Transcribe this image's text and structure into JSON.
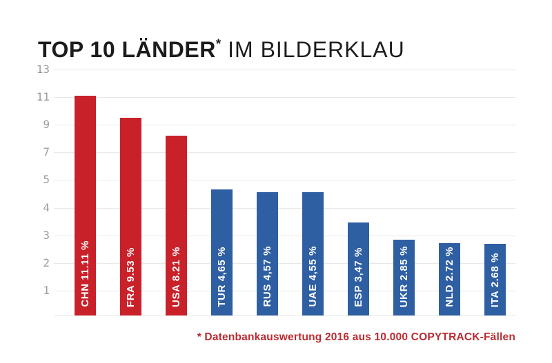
{
  "title": {
    "bold": "TOP 10 LÄNDER",
    "asterisk": "*",
    "regular": " IM BILDERKLAU"
  },
  "footnote": "* Datenbankauswertung 2016 aus 10.000 COPYTRACK-Fällen",
  "colors": {
    "red": "#c9212a",
    "blue": "#2e5fa3",
    "footnote_red": "#bb2b31",
    "grid": "#e8e8e6",
    "tick": "#9c9c9c",
    "title": "#1c1c1c",
    "bar_label_text": "#ffffff"
  },
  "chart_data": {
    "type": "bar",
    "title": "TOP 10 LÄNDER* IM BILDERKLAU",
    "xlabel": "",
    "ylabel": "",
    "categories": [
      "CHN",
      "FRA",
      "USA",
      "TUR",
      "RUS",
      "UAE",
      "ESP",
      "UKR",
      "NLD",
      "ITA"
    ],
    "values": [
      11.11,
      9.53,
      8.21,
      4.65,
      4.57,
      4.55,
      3.47,
      2.85,
      2.72,
      2.68
    ],
    "bar_labels": [
      "CHN 11.11 %",
      "FRA 9.53 %",
      "USA 8.21 %",
      "TUR 4,65 %",
      "RUS 4,57 %",
      "UAE 4,55 %",
      "ESP 3,47 %",
      "UKR 2.85 %",
      "NLD 2.72 %",
      "ITA 2.68 %"
    ],
    "bar_colors": [
      "red",
      "red",
      "red",
      "blue",
      "blue",
      "blue",
      "blue",
      "blue",
      "blue",
      "blue"
    ],
    "y_ticks": [
      13,
      11,
      9,
      7,
      5,
      4,
      3,
      2,
      1
    ],
    "y_axis_nonlinear": true,
    "grid": true,
    "legend": false,
    "annotation": "* Datenbankauswertung 2016 aus 10.000 COPYTRACK-Fällen"
  }
}
